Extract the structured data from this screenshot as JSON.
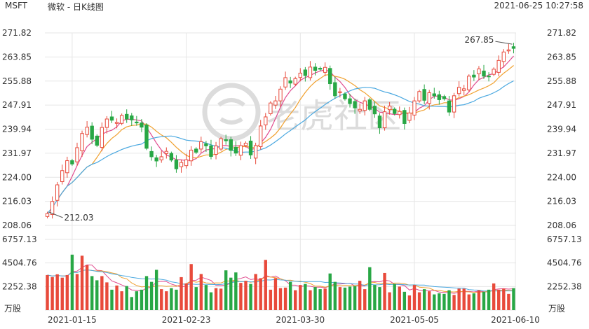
{
  "header": {
    "symbol": "MSFT",
    "title": "微软 - 日K线图",
    "timestamp": "2021-06-25 10:27:58"
  },
  "watermark": {
    "text": "老虎社区",
    "icon": "tiger-logo-icon",
    "color": "#dcdcdc"
  },
  "colors": {
    "up": "#e84a3b",
    "down": "#28a745",
    "ma5": "#e04a8e",
    "ma10": "#f0a02e",
    "ma20": "#4aa8e0",
    "grid": "#e6e6e6",
    "axis_text": "#333333"
  },
  "chart_data": [
    {
      "type": "candlestick",
      "title": "微软 - 日K线图",
      "y_ticks": [
        "271.82",
        "263.85",
        "255.88",
        "247.91",
        "239.94",
        "231.97",
        "224.00",
        "216.03",
        "208.06"
      ],
      "ylim": [
        208.06,
        271.82
      ],
      "x_ticks": [
        "2021-01-15",
        "2021-02-23",
        "2021-03-30",
        "2021-05-05",
        "2021-06-10"
      ],
      "annotations": [
        {
          "text": "267.85",
          "type": "max"
        },
        {
          "text": "212.03",
          "type": "min"
        }
      ],
      "series": [
        {
          "name": "ohlc",
          "close": [
            212.0,
            216.0,
            221.5,
            226.2,
            229.5,
            228.4,
            233.8,
            238.5,
            240.6,
            236.6,
            234.6,
            240.5,
            243.3,
            242.9,
            242.2,
            244.5,
            243.3,
            243.0,
            242.0,
            240.6,
            233.6,
            230.8,
            229.4,
            230.8,
            232.6,
            229.7,
            226.8,
            228.9,
            229.8,
            233.0,
            232.3,
            235.8,
            234.4,
            230.9,
            234.4,
            236.8,
            236.1,
            232.9,
            232.0,
            234.5,
            235.3,
            231.4,
            234.5,
            241.0,
            244.0,
            248.6,
            249.3,
            253.2,
            257.0,
            255.2,
            256.7,
            258.5,
            257.7,
            260.5,
            259.4,
            259.8,
            260.4,
            255.0,
            251.0,
            252.3,
            250.0,
            248.4,
            247.0,
            246.5,
            249.3,
            246.5,
            245.0,
            240.4,
            245.7,
            247.6,
            245.1,
            245.8,
            241.8,
            245.3,
            249.3,
            252.4,
            249.5,
            252.0,
            251.0,
            249.7,
            250.0,
            245.6,
            251.0,
            253.8,
            253.3,
            257.5,
            257.2,
            259.9,
            257.5,
            257.4,
            259.8,
            262.7,
            265.5,
            266.2,
            266.7
          ]
        },
        {
          "name": "volume",
          "values": [
            3350,
            3150,
            3420,
            3100,
            3350,
            5300,
            3450,
            5200,
            4300,
            3250,
            2850,
            3250,
            2650,
            1950,
            2350,
            1800,
            2300,
            1250,
            1800,
            1950,
            3250,
            2700,
            3850,
            2000,
            1800,
            2100,
            1950,
            3150,
            2550,
            4400,
            2200,
            3450,
            2400,
            1700,
            2100,
            2050,
            3800,
            3100,
            3600,
            2600,
            2800,
            2500,
            3450,
            3050,
            4800,
            1950,
            3050,
            2100,
            2150,
            2700,
            1900,
            2400,
            2500,
            1900,
            2200,
            2000,
            2050,
            3500,
            2700,
            2200,
            2150,
            2250,
            2300,
            2800,
            2000,
            4100,
            2400,
            2200,
            3550,
            1700,
            2500,
            2250,
            1750,
            1400,
            2400,
            1700,
            2000,
            1800,
            1500,
            1600,
            1550,
            1900,
            1450,
            2050,
            2050,
            1500,
            1600,
            1900,
            1750,
            1950,
            2550,
            1950,
            2050,
            1550,
            2100
          ]
        }
      ],
      "volume_axis": {
        "ticks": [
          "6757.13",
          "4504.76",
          "2252.38"
        ],
        "unit": "万股",
        "ylim": [
          0,
          6757.13
        ]
      }
    }
  ]
}
